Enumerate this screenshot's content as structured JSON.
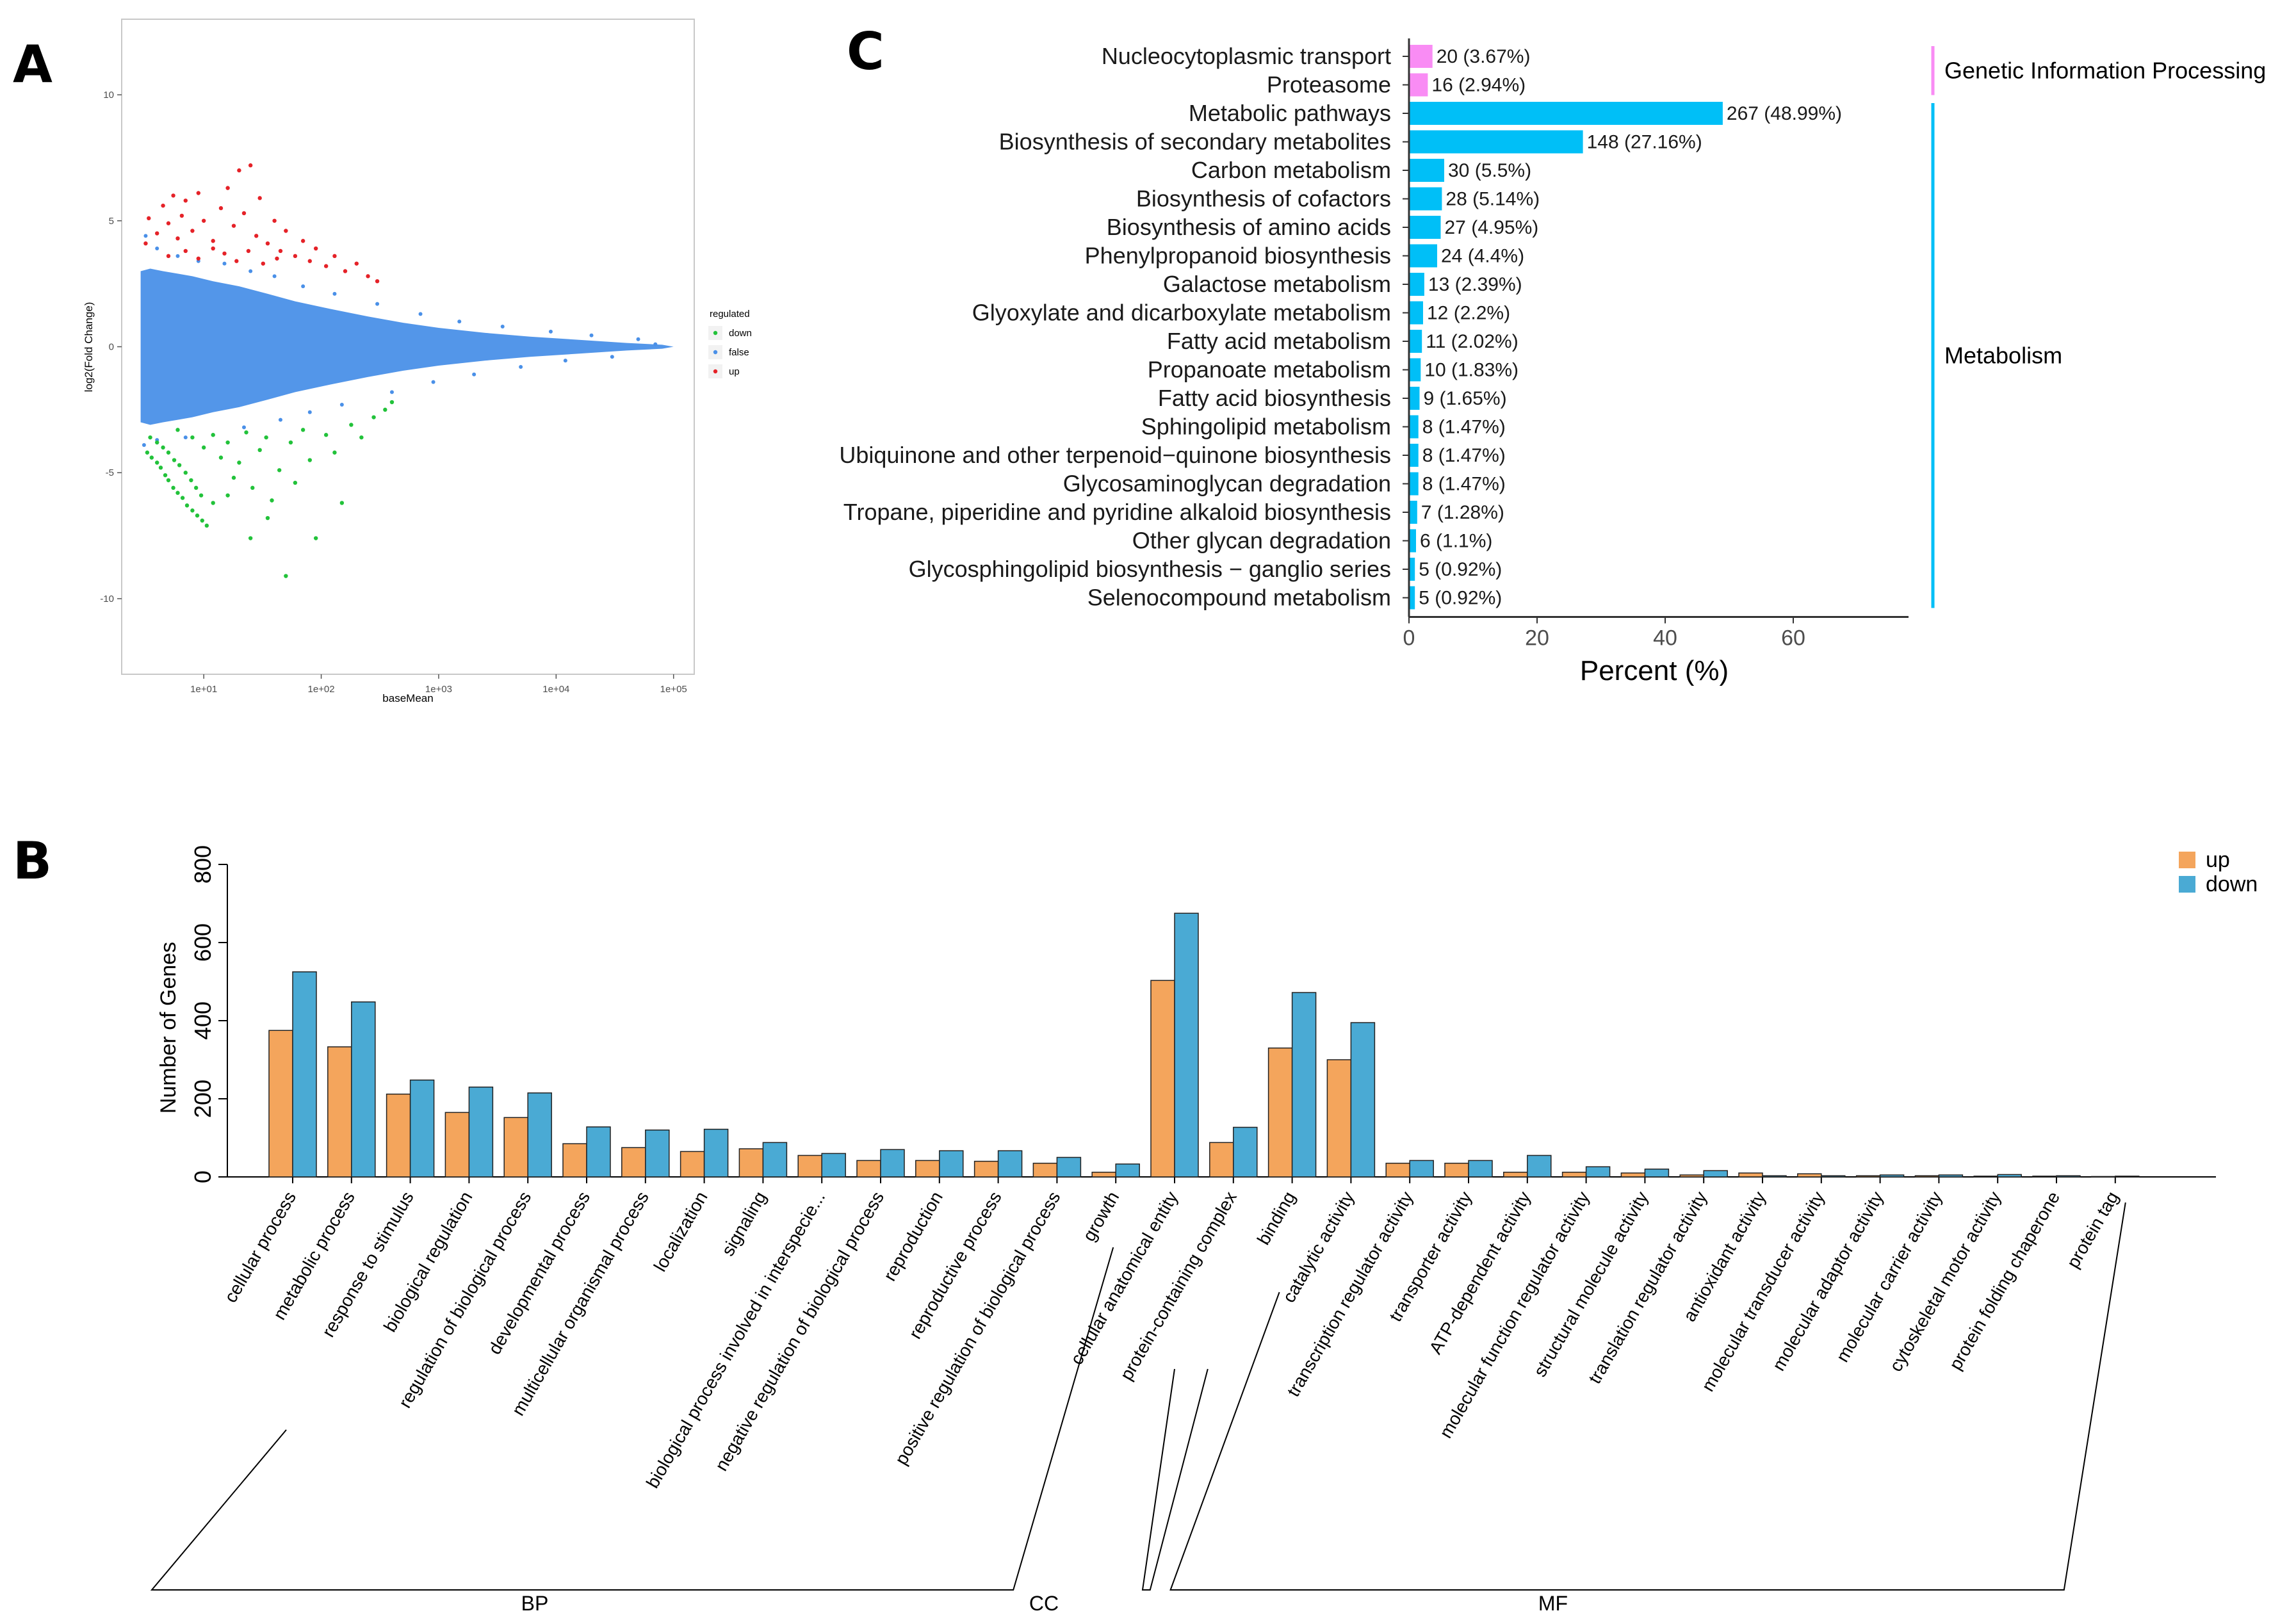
{
  "panels": {
    "a": "A",
    "b": "B",
    "c": "C"
  },
  "chart_data": [
    {
      "id": "A",
      "type": "scatter",
      "xlabel": "baseMean",
      "ylabel": "log2(Fold Change)",
      "x_scale": "log",
      "xlim": [
        2,
        150000
      ],
      "ylim": [
        -13,
        13
      ],
      "x_ticks": [
        "1e+01",
        "1e+02",
        "1e+03",
        "1e+04",
        "1e+05"
      ],
      "x_tick_values": [
        10,
        100,
        1000,
        10000,
        100000
      ],
      "y_ticks": [
        "-10",
        "-5",
        "0",
        "5",
        "10"
      ],
      "y_tick_values": [
        -10,
        -5,
        0,
        5,
        10
      ],
      "legend": {
        "title": "regulated",
        "position": "right",
        "entries": [
          "down",
          "false",
          "up"
        ]
      },
      "colors": {
        "down": "#22c23a",
        "false": "#4a90e8",
        "up": "#e52228"
      },
      "series": [
        {
          "name": "up",
          "points": [
            [
              3.2,
              4.1
            ],
            [
              3.4,
              5.1
            ],
            [
              4,
              4.5
            ],
            [
              4.5,
              5.6
            ],
            [
              5,
              4.9
            ],
            [
              5.5,
              6
            ],
            [
              6,
              4.3
            ],
            [
              6.5,
              5.2
            ],
            [
              7,
              5.8
            ],
            [
              8,
              4.6
            ],
            [
              9,
              6.1
            ],
            [
              10,
              5
            ],
            [
              12,
              4.2
            ],
            [
              14,
              5.5
            ],
            [
              16,
              6.3
            ],
            [
              18,
              4.8
            ],
            [
              20,
              7
            ],
            [
              22,
              5.3
            ],
            [
              25,
              7.2
            ],
            [
              28,
              4.4
            ],
            [
              30,
              5.9
            ],
            [
              35,
              4.1
            ],
            [
              40,
              5
            ],
            [
              45,
              3.8
            ],
            [
              50,
              4.6
            ],
            [
              60,
              3.6
            ],
            [
              70,
              4.2
            ],
            [
              80,
              3.4
            ],
            [
              90,
              3.9
            ],
            [
              110,
              3.2
            ],
            [
              130,
              3.6
            ],
            [
              160,
              3
            ],
            [
              200,
              3.3
            ],
            [
              250,
              2.8
            ],
            [
              300,
              2.6
            ],
            [
              5,
              3.6
            ],
            [
              7,
              3.8
            ],
            [
              9,
              3.5
            ],
            [
              12,
              3.9
            ],
            [
              15,
              3.7
            ],
            [
              19,
              3.4
            ],
            [
              24,
              3.8
            ],
            [
              32,
              3.3
            ],
            [
              42,
              3.5
            ]
          ]
        },
        {
          "name": "down",
          "points": [
            [
              3.3,
              -4.2
            ],
            [
              3.6,
              -4.4
            ],
            [
              4,
              -4.6
            ],
            [
              4.3,
              -4.8
            ],
            [
              4.7,
              -5.1
            ],
            [
              5,
              -5.3
            ],
            [
              5.5,
              -5.6
            ],
            [
              6,
              -5.8
            ],
            [
              6.6,
              -6
            ],
            [
              7.2,
              -6.3
            ],
            [
              8,
              -6.5
            ],
            [
              8.8,
              -6.7
            ],
            [
              9.7,
              -6.9
            ],
            [
              10.6,
              -7.1
            ],
            [
              3.5,
              -3.6
            ],
            [
              4,
              -3.8
            ],
            [
              4.5,
              -4
            ],
            [
              5,
              -4.2
            ],
            [
              5.6,
              -4.5
            ],
            [
              6.2,
              -4.7
            ],
            [
              7,
              -5
            ],
            [
              7.8,
              -5.3
            ],
            [
              8.6,
              -5.6
            ],
            [
              9.5,
              -5.9
            ],
            [
              6,
              -3.3
            ],
            [
              8,
              -3.6
            ],
            [
              10,
              -4
            ],
            [
              12,
              -3.5
            ],
            [
              14,
              -4.4
            ],
            [
              16,
              -3.8
            ],
            [
              18,
              -5.2
            ],
            [
              20,
              -4.6
            ],
            [
              23,
              -3.4
            ],
            [
              26,
              -5.6
            ],
            [
              30,
              -4.1
            ],
            [
              34,
              -3.6
            ],
            [
              38,
              -6.1
            ],
            [
              44,
              -4.9
            ],
            [
              50,
              -9.1
            ],
            [
              55,
              -3.8
            ],
            [
              60,
              -5.4
            ],
            [
              70,
              -3.3
            ],
            [
              80,
              -4.5
            ],
            [
              90,
              -7.6
            ],
            [
              110,
              -3.5
            ],
            [
              130,
              -4.2
            ],
            [
              150,
              -6.2
            ],
            [
              180,
              -3.1
            ],
            [
              220,
              -3.6
            ],
            [
              280,
              -2.8
            ],
            [
              350,
              -2.5
            ],
            [
              400,
              -2.2
            ],
            [
              25,
              -7.6
            ],
            [
              35,
              -6.8
            ],
            [
              12,
              -6.2
            ],
            [
              16,
              -5.9
            ]
          ]
        }
      ],
      "background_cloud": "dense blue cloud of non-significant genes centered on 0, narrowing toward high baseMean"
    },
    {
      "id": "B",
      "type": "bar",
      "ylabel": "Number of Genes",
      "ylim": [
        0,
        800
      ],
      "y_ticks": [
        0,
        200,
        400,
        600,
        800
      ],
      "legend": {
        "position": "top-right",
        "entries": [
          "up",
          "down"
        ]
      },
      "colors": {
        "up": "#f4a55c",
        "down": "#4aaad4"
      },
      "categories": [
        "cellular process",
        "metabolic process",
        "response to stimulus",
        "biological regulation",
        "regulation of biological process",
        "developmental process",
        "multicellular organismal process",
        "localization",
        "signaling",
        "biological process involved in interspecie...",
        "negative regulation of biological process",
        "reproduction",
        "reproductive process",
        "positive regulation of biological process",
        "growth",
        "cellular anatomical entity",
        "protein-containing complex",
        "binding",
        "catalytic activity",
        "transcription regulator activity",
        "transporter activity",
        "ATP-dependent activity",
        "molecular function regulator activity",
        "structural molecule activity",
        "translation regulator activity",
        "antioxidant activity",
        "molecular transducer activity",
        "molecular adaptor activity",
        "molecular carrier activity",
        "cytoskeletal motor activity",
        "protein folding chaperone",
        "protein tag"
      ],
      "series": [
        {
          "name": "up",
          "values": [
            375,
            333,
            212,
            165,
            152,
            85,
            75,
            65,
            72,
            55,
            42,
            42,
            40,
            35,
            12,
            503,
            88,
            330,
            300,
            35,
            35,
            12,
            12,
            10,
            5,
            10,
            8,
            3,
            3,
            2,
            2,
            1
          ]
        },
        {
          "name": "down",
          "values": [
            525,
            448,
            248,
            230,
            215,
            128,
            120,
            122,
            88,
            60,
            70,
            67,
            67,
            50,
            33,
            675,
            127,
            472,
            395,
            42,
            42,
            55,
            26,
            20,
            16,
            3,
            3,
            5,
            5,
            6,
            3,
            2
          ]
        }
      ],
      "groups": [
        {
          "name": "BP",
          "from": 0,
          "to": 14
        },
        {
          "name": "CC",
          "from": 15,
          "to": 16
        },
        {
          "name": "MF",
          "from": 17,
          "to": 31
        }
      ]
    },
    {
      "id": "C",
      "type": "bar",
      "orientation": "horizontal",
      "xlabel": "Percent (%)",
      "xlim": [
        0,
        78
      ],
      "x_ticks": [
        0,
        20,
        40,
        60
      ],
      "colors": {
        "Genetic Information Processing": "#f98cf4",
        "Metabolism": "#00bff7"
      },
      "categories": [
        "Nucleocytoplasmic transport",
        "Proteasome",
        "Metabolic pathways",
        "Biosynthesis of secondary metabolites",
        "Carbon metabolism",
        "Biosynthesis of cofactors",
        "Biosynthesis of amino acids",
        "Phenylpropanoid biosynthesis",
        "Galactose metabolism",
        "Glyoxylate and dicarboxylate metabolism",
        "Fatty acid metabolism",
        "Propanoate metabolism",
        "Fatty acid biosynthesis",
        "Sphingolipid metabolism",
        "Ubiquinone and other terpenoid−quinone biosynthesis",
        "Glycosaminoglycan degradation",
        "Tropane, piperidine and pyridine alkaloid biosynthesis",
        "Other glycan degradation",
        "Glycosphingolipid biosynthesis − ganglio series",
        "Selenocompound metabolism"
      ],
      "values": [
        3.67,
        2.94,
        48.99,
        27.16,
        5.5,
        5.14,
        4.95,
        4.4,
        2.39,
        2.2,
        2.02,
        1.83,
        1.65,
        1.47,
        1.47,
        1.47,
        1.28,
        1.1,
        0.92,
        0.92
      ],
      "data_labels": [
        "20 (3.67%)",
        "16 (2.94%)",
        "267 (48.99%)",
        "148 (27.16%)",
        "30 (5.5%)",
        "28 (5.14%)",
        "27 (4.95%)",
        "24 (4.4%)",
        "13 (2.39%)",
        "12 (2.2%)",
        "11 (2.02%)",
        "10 (1.83%)",
        "9 (1.65%)",
        "8 (1.47%)",
        "8 (1.47%)",
        "8 (1.47%)",
        "7 (1.28%)",
        "6 (1.1%)",
        "5 (0.92%)",
        "5 (0.92%)"
      ],
      "groups": [
        {
          "name": "Genetic Information Processing",
          "from": 0,
          "to": 1
        },
        {
          "name": "Metabolism",
          "from": 2,
          "to": 19
        }
      ]
    }
  ]
}
